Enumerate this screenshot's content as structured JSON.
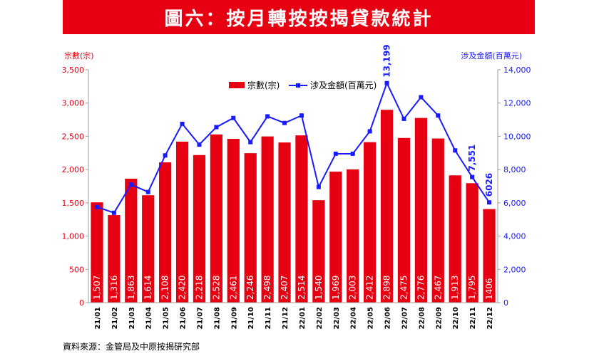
{
  "header": {
    "title": "圖六：按月轉按按揭貸款統計"
  },
  "source": "資料來源：金管局及中原按揭研究部",
  "colors": {
    "bar": "#e60012",
    "line": "#1a1aff",
    "left_axis": "#e60012",
    "right_axis": "#1a1aff"
  },
  "chart_data": {
    "type": "bar",
    "title": "圖六：按月轉按按揭貸款統計",
    "categories": [
      "21/01",
      "21/02",
      "21/03",
      "21/04",
      "21/05",
      "21/06",
      "21/07",
      "21/08",
      "21/09",
      "21/10",
      "21/11",
      "21/12",
      "22/01",
      "22/02",
      "22/03",
      "22/04",
      "22/05",
      "22/06",
      "22/07",
      "22/08",
      "22/09",
      "22/10",
      "22/11",
      "22/12"
    ],
    "series": [
      {
        "name": "宗數(宗)",
        "type": "bar",
        "axis": "left",
        "values": [
          1507,
          1316,
          1863,
          1614,
          2108,
          2420,
          2218,
          2528,
          2461,
          2246,
          2498,
          2407,
          2514,
          1540,
          1969,
          2003,
          2412,
          2898,
          2475,
          2776,
          2467,
          1913,
          1795,
          1406
        ],
        "labels": [
          "1,507",
          "1,316",
          "1,863",
          "1,614",
          "2,108",
          "2,420",
          "2,218",
          "2,528",
          "2,461",
          "2,246",
          "2,498",
          "2,407",
          "2,514",
          "1,540",
          "1,969",
          "2,003",
          "2,412",
          "2,898",
          "2,475",
          "2,776",
          "2,467",
          "1,913",
          "1,795",
          "1406"
        ]
      },
      {
        "name": "涉及金額(百萬元)",
        "type": "line",
        "axis": "right",
        "values": [
          5750,
          5400,
          7100,
          6650,
          8850,
          10750,
          9500,
          10550,
          11100,
          9650,
          11200,
          10800,
          11250,
          6950,
          8950,
          8950,
          10300,
          13199,
          11050,
          12350,
          11250,
          9150,
          7551,
          6026
        ]
      }
    ],
    "point_labels": [
      {
        "index": 17,
        "text": "13,199"
      },
      {
        "index": 22,
        "text": "7,551"
      },
      {
        "index": 23,
        "text": "6026"
      }
    ],
    "ylabel": "宗數(宗)",
    "y2label": "涉及金額(百萬元)",
    "ylim": [
      0,
      3500
    ],
    "y2lim": [
      0,
      14000
    ],
    "yticks": [
      "0",
      "500",
      "1,000",
      "1,500",
      "2,000",
      "2,500",
      "3,000",
      "3,500"
    ],
    "y2ticks": [
      "0",
      "2,000",
      "4,000",
      "6,000",
      "8,000",
      "10,000",
      "12,000",
      "14,000"
    ],
    "legend": "top-center"
  }
}
